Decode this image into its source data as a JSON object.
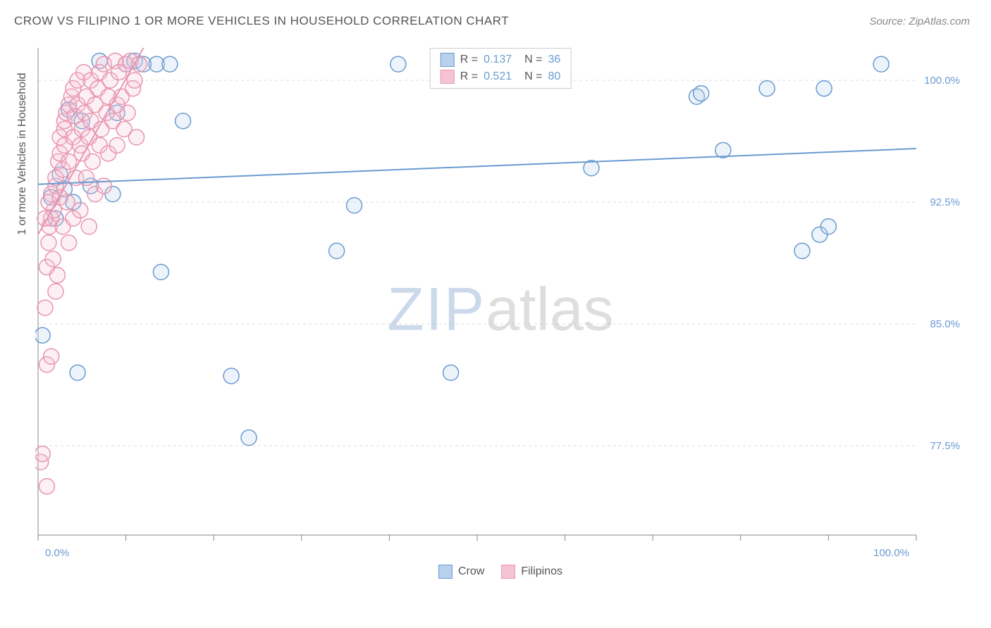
{
  "header": {
    "title": "CROW VS FILIPINO 1 OR MORE VEHICLES IN HOUSEHOLD CORRELATION CHART",
    "source_label": "Source: ZipAtlas.com"
  },
  "watermark": {
    "part1": "ZIP",
    "part2": "atlas"
  },
  "chart": {
    "type": "scatter",
    "ylabel": "1 or more Vehicles in Household",
    "xlim": [
      0,
      100
    ],
    "ylim": [
      72,
      102
    ],
    "ytick_values": [
      77.5,
      85.0,
      92.5,
      100.0
    ],
    "ytick_labels": [
      "77.5%",
      "85.0%",
      "92.5%",
      "100.0%"
    ],
    "xtick_values": [
      0,
      10,
      20,
      30,
      40,
      50,
      60,
      70,
      80,
      90,
      100
    ],
    "xtick_labels_shown": {
      "0": "0.0%",
      "100": "100.0%"
    },
    "grid_color": "#dddddd",
    "axis_color": "#888888",
    "tick_label_color": "#6b9bd1",
    "background_color": "#ffffff",
    "marker_radius": 11,
    "marker_stroke_width": 1.5,
    "marker_fill_opacity": 0.25,
    "series": [
      {
        "name": "Crow",
        "color": "#6b9bd1",
        "fill": "#b8d0eb",
        "r_value": "0.137",
        "n_value": "36",
        "trend_line": {
          "x1": 0,
          "y1": 93.6,
          "x2": 100,
          "y2": 95.8,
          "width": 2
        },
        "points": [
          [
            0.5,
            84.3
          ],
          [
            1.5,
            92.8
          ],
          [
            2.0,
            91.5
          ],
          [
            2.5,
            94.2
          ],
          [
            3.0,
            93.3
          ],
          [
            3.5,
            98.2
          ],
          [
            4.0,
            92.5
          ],
          [
            4.5,
            82.0
          ],
          [
            5.0,
            97.5
          ],
          [
            6.0,
            93.5
          ],
          [
            7.0,
            101.2
          ],
          [
            8.5,
            93.0
          ],
          [
            9.0,
            98.0
          ],
          [
            10.0,
            101.0
          ],
          [
            11.0,
            101.2
          ],
          [
            12.0,
            101.0
          ],
          [
            13.5,
            101.0
          ],
          [
            14.0,
            88.2
          ],
          [
            15.0,
            101.0
          ],
          [
            16.5,
            97.5
          ],
          [
            22.0,
            81.8
          ],
          [
            24.0,
            78.0
          ],
          [
            34.0,
            89.5
          ],
          [
            36.0,
            92.3
          ],
          [
            41.0,
            101.0
          ],
          [
            47.0,
            82.0
          ],
          [
            63.0,
            94.6
          ],
          [
            75.0,
            99.0
          ],
          [
            78.0,
            95.7
          ],
          [
            83.0,
            99.5
          ],
          [
            87.0,
            89.5
          ],
          [
            89.0,
            90.5
          ],
          [
            89.5,
            99.5
          ],
          [
            90.0,
            91.0
          ],
          [
            96.0,
            101.0
          ],
          [
            75.5,
            99.2
          ]
        ]
      },
      {
        "name": "Filipinos",
        "color": "#e895b0",
        "fill": "#f5c3d3",
        "r_value": "0.521",
        "n_value": "80",
        "trend_line": {
          "x1": 0,
          "y1": 90.5,
          "x2": 12,
          "y2": 102,
          "width": 2
        },
        "points": [
          [
            0.3,
            76.5
          ],
          [
            0.5,
            77.0
          ],
          [
            0.8,
            86.0
          ],
          [
            1.0,
            82.5
          ],
          [
            1.0,
            88.5
          ],
          [
            1.2,
            90.0
          ],
          [
            1.3,
            91.0
          ],
          [
            1.5,
            91.5
          ],
          [
            1.5,
            93.0
          ],
          [
            1.8,
            92.0
          ],
          [
            2.0,
            93.5
          ],
          [
            2.0,
            94.0
          ],
          [
            2.2,
            88.0
          ],
          [
            2.3,
            95.0
          ],
          [
            2.5,
            95.5
          ],
          [
            2.5,
            96.5
          ],
          [
            2.8,
            94.5
          ],
          [
            3.0,
            96.0
          ],
          [
            3.0,
            97.0
          ],
          [
            3.0,
            97.5
          ],
          [
            3.2,
            98.0
          ],
          [
            3.3,
            92.5
          ],
          [
            3.5,
            98.5
          ],
          [
            3.5,
            95.0
          ],
          [
            3.8,
            99.0
          ],
          [
            4.0,
            99.5
          ],
          [
            4.0,
            96.5
          ],
          [
            4.2,
            97.8
          ],
          [
            4.3,
            94.0
          ],
          [
            4.5,
            100.0
          ],
          [
            4.5,
            98.5
          ],
          [
            4.8,
            96.0
          ],
          [
            5.0,
            97.0
          ],
          [
            5.0,
            95.5
          ],
          [
            5.2,
            100.5
          ],
          [
            5.3,
            98.0
          ],
          [
            5.5,
            99.0
          ],
          [
            5.8,
            96.5
          ],
          [
            6.0,
            97.5
          ],
          [
            6.0,
            100.0
          ],
          [
            6.2,
            95.0
          ],
          [
            6.5,
            98.5
          ],
          [
            6.8,
            99.5
          ],
          [
            7.0,
            96.0
          ],
          [
            7.0,
            100.5
          ],
          [
            7.2,
            97.0
          ],
          [
            7.5,
            101.0
          ],
          [
            7.8,
            98.0
          ],
          [
            8.0,
            99.0
          ],
          [
            8.0,
            95.5
          ],
          [
            8.2,
            100.0
          ],
          [
            8.5,
            97.5
          ],
          [
            8.8,
            101.2
          ],
          [
            9.0,
            98.5
          ],
          [
            9.0,
            96.0
          ],
          [
            9.2,
            100.5
          ],
          [
            9.5,
            99.0
          ],
          [
            9.8,
            97.0
          ],
          [
            10.0,
            101.0
          ],
          [
            10.2,
            98.0
          ],
          [
            10.5,
            101.2
          ],
          [
            10.8,
            99.5
          ],
          [
            11.0,
            100.0
          ],
          [
            11.2,
            96.5
          ],
          [
            11.5,
            101.0
          ],
          [
            1.0,
            75.0
          ],
          [
            1.5,
            83.0
          ],
          [
            2.0,
            87.0
          ],
          [
            0.8,
            91.5
          ],
          [
            1.2,
            92.5
          ],
          [
            1.7,
            89.0
          ],
          [
            2.8,
            91.0
          ],
          [
            3.5,
            90.0
          ],
          [
            4.0,
            91.5
          ],
          [
            2.5,
            92.8
          ],
          [
            6.5,
            93.0
          ],
          [
            5.5,
            94.0
          ],
          [
            7.5,
            93.5
          ],
          [
            4.8,
            92.0
          ],
          [
            5.8,
            91.0
          ]
        ]
      }
    ],
    "legend_bottom": [
      {
        "label": "Crow",
        "color": "#6b9bd1",
        "fill": "#b8d0eb"
      },
      {
        "label": "Filipinos",
        "color": "#e895b0",
        "fill": "#f5c3d3"
      }
    ]
  }
}
